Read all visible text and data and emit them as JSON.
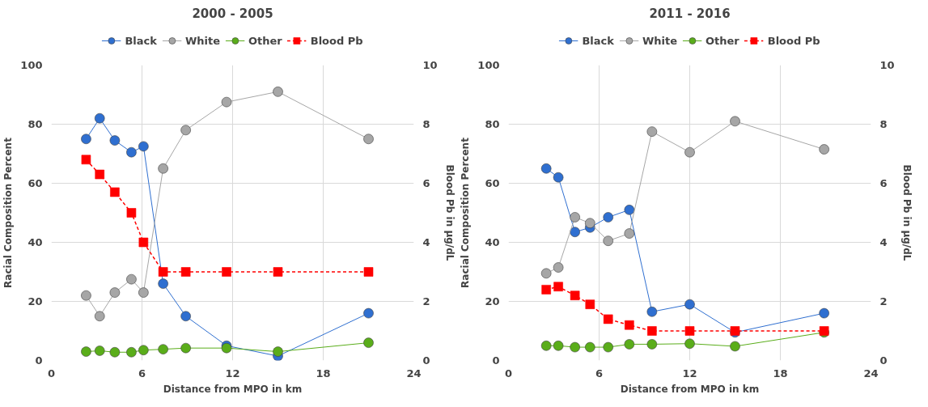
{
  "chart_data": [
    {
      "type": "line",
      "title": "2000 - 2005",
      "xlabel": "Distance from MPO in km",
      "ylabel": "Racial Composition Percent",
      "y2label": "Blood Pb in µg/dL",
      "x": [
        2.3,
        3.2,
        4.2,
        5.3,
        6.1,
        7.4,
        8.9,
        11.6,
        15.0,
        21.0
      ],
      "xlim": [
        0,
        24
      ],
      "xticks": [
        0,
        6,
        12,
        18,
        24
      ],
      "ylim": [
        0,
        100
      ],
      "yticks": [
        0,
        20,
        40,
        60,
        80,
        100
      ],
      "y2lim": [
        0,
        10
      ],
      "y2ticks": [
        0,
        2,
        4,
        6,
        8,
        10
      ],
      "grid": true,
      "legend": "top",
      "series": [
        {
          "name": "Black",
          "color": "#2f6fd0",
          "marker": "circle",
          "line_style": "solid",
          "values": [
            75,
            82,
            74.5,
            70.5,
            72.5,
            26,
            15,
            5,
            1.5,
            16
          ]
        },
        {
          "name": "White",
          "color": "#a6a6a6",
          "marker": "circle",
          "line_style": "solid",
          "values": [
            22,
            15,
            23,
            27.5,
            23,
            65,
            78,
            87.5,
            91,
            75
          ]
        },
        {
          "name": "Other",
          "color": "#5aad1a",
          "marker": "circle",
          "line_style": "solid",
          "values": [
            3,
            3.3,
            2.8,
            2.8,
            3.5,
            3.8,
            4.2,
            4.2,
            3,
            6
          ]
        },
        {
          "name": "Blood Pb",
          "color": "#ff0000",
          "marker": "square",
          "line_style": "dashed",
          "axis": "y2",
          "values": [
            6.8,
            6.3,
            5.7,
            5.0,
            4.0,
            3.0,
            3.0,
            3.0,
            3.0,
            3.0
          ]
        }
      ]
    },
    {
      "type": "line",
      "title": "2011 - 2016",
      "xlabel": "Distance from MPO in km",
      "ylabel": "Racial Composition Percent",
      "y2label": "Blood Pb in µg/dL",
      "x": [
        2.5,
        3.3,
        4.4,
        5.4,
        6.6,
        8.0,
        9.5,
        12.0,
        15.0,
        20.9
      ],
      "xlim": [
        0,
        24
      ],
      "xticks": [
        0,
        6,
        12,
        18,
        24
      ],
      "ylim": [
        0,
        100
      ],
      "yticks": [
        0,
        20,
        40,
        60,
        80,
        100
      ],
      "y2lim": [
        0,
        10
      ],
      "y2ticks": [
        0,
        2,
        4,
        6,
        8,
        10
      ],
      "grid": true,
      "legend": "top",
      "series": [
        {
          "name": "Black",
          "color": "#2f6fd0",
          "marker": "circle",
          "line_style": "solid",
          "values": [
            65,
            62,
            43.5,
            45,
            48.5,
            51,
            16.5,
            19,
            9.5,
            16
          ]
        },
        {
          "name": "White",
          "color": "#a6a6a6",
          "marker": "circle",
          "line_style": "solid",
          "values": [
            29.5,
            31.5,
            48.5,
            46.5,
            40.5,
            43,
            77.5,
            70.5,
            81,
            71.5
          ]
        },
        {
          "name": "Other",
          "color": "#5aad1a",
          "marker": "circle",
          "line_style": "solid",
          "values": [
            5,
            5,
            4.5,
            4.5,
            4.5,
            5.5,
            5.5,
            5.7,
            4.8,
            9.5
          ]
        },
        {
          "name": "Blood Pb",
          "color": "#ff0000",
          "marker": "square",
          "line_style": "dashed",
          "axis": "y2",
          "values": [
            2.4,
            2.5,
            2.2,
            1.9,
            1.4,
            1.2,
            1.0,
            1.0,
            1.0,
            1.0
          ]
        }
      ]
    }
  ]
}
